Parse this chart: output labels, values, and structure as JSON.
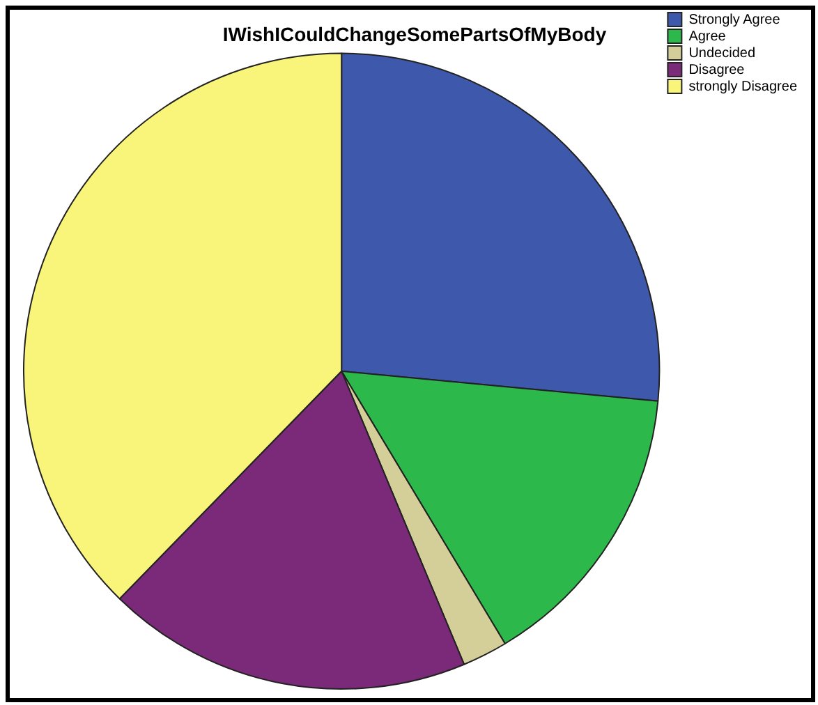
{
  "chart_data": {
    "type": "pie",
    "title": "IWishICouldChangeSomePartsOfMyBody",
    "categories": [
      "Strongly Agree",
      "Agree",
      "Undecided",
      "Disagree",
      "strongly Disagree"
    ],
    "values": [
      26.5,
      14.9,
      2.3,
      18.6,
      37.7
    ],
    "colors": [
      "#3e58ac",
      "#2db84b",
      "#d4cf98",
      "#7a2a78",
      "#f9f57a"
    ],
    "legend": "top right"
  }
}
